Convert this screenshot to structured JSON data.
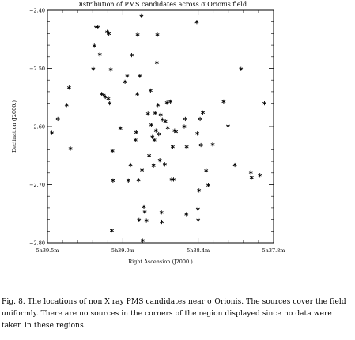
{
  "chart_data": {
    "type": "scatter",
    "title": "Distribution of PMS candidates across σ Orionis field",
    "xlabel": "Right Ascension (J2000.)",
    "ylabel": "Declination (J2000.)",
    "x_unit": "seconds of 5h RA",
    "x_axis_reversed": true,
    "xlim": [
      2359.5,
      2277.0
    ],
    "ylim": [
      -2.8,
      -2.4
    ],
    "x_ticks": [
      2359.5,
      2332.0,
      2304.5,
      2277.0
    ],
    "x_tick_labels": [
      "5h39.5m",
      "5h39.0m",
      "5h38.4m",
      "5h37.8m"
    ],
    "y_ticks": [
      -2.4,
      -2.5,
      -2.6,
      -2.7,
      -2.8
    ],
    "y_tick_labels": [
      "−2.40",
      "−2.50",
      "−2.60",
      "−2.70",
      "−2.80"
    ],
    "grid": false,
    "legend": "none",
    "marker": "asterisk",
    "points": [
      {
        "x": 2357.9,
        "y": -2.611
      },
      {
        "x": 2355.7,
        "y": -2.587
      },
      {
        "x": 2352.5,
        "y": -2.563
      },
      {
        "x": 2351.6,
        "y": -2.533
      },
      {
        "x": 2351.1,
        "y": -2.638
      },
      {
        "x": 2342.8,
        "y": -2.501
      },
      {
        "x": 2342.4,
        "y": -2.461
      },
      {
        "x": 2341.8,
        "y": -2.429
      },
      {
        "x": 2341.1,
        "y": -2.429
      },
      {
        "x": 2340.4,
        "y": -2.476
      },
      {
        "x": 2339.7,
        "y": -2.544
      },
      {
        "x": 2339.0,
        "y": -2.546
      },
      {
        "x": 2338.4,
        "y": -2.549
      },
      {
        "x": 2337.7,
        "y": -2.437
      },
      {
        "x": 2337.3,
        "y": -2.552
      },
      {
        "x": 2337.1,
        "y": -2.44
      },
      {
        "x": 2336.8,
        "y": -2.56
      },
      {
        "x": 2336.4,
        "y": -2.502
      },
      {
        "x": 2335.8,
        "y": -2.642
      },
      {
        "x": 2335.6,
        "y": -2.693
      },
      {
        "x": 2336.0,
        "y": -2.779
      },
      {
        "x": 2332.9,
        "y": -2.603
      },
      {
        "x": 2331.2,
        "y": -2.523
      },
      {
        "x": 2330.4,
        "y": -2.513
      },
      {
        "x": 2330.0,
        "y": -2.693
      },
      {
        "x": 2329.2,
        "y": -2.666
      },
      {
        "x": 2328.8,
        "y": -2.477
      },
      {
        "x": 2327.4,
        "y": -2.623
      },
      {
        "x": 2327.1,
        "y": -2.61
      },
      {
        "x": 2326.7,
        "y": -2.544
      },
      {
        "x": 2326.3,
        "y": -2.692
      },
      {
        "x": 2326.1,
        "y": -2.761
      },
      {
        "x": 2326.6,
        "y": -2.442
      },
      {
        "x": 2325.8,
        "y": -2.513
      },
      {
        "x": 2325.2,
        "y": -2.41
      },
      {
        "x": 2325.0,
        "y": -2.675
      },
      {
        "x": 2324.8,
        "y": -2.796
      },
      {
        "x": 2324.3,
        "y": -2.738
      },
      {
        "x": 2324.0,
        "y": -2.747
      },
      {
        "x": 2323.4,
        "y": -2.762
      },
      {
        "x": 2322.8,
        "y": -2.578
      },
      {
        "x": 2322.4,
        "y": -2.65
      },
      {
        "x": 2321.9,
        "y": -2.538
      },
      {
        "x": 2321.6,
        "y": -2.597
      },
      {
        "x": 2321.2,
        "y": -2.618
      },
      {
        "x": 2320.8,
        "y": -2.667
      },
      {
        "x": 2320.5,
        "y": -2.623
      },
      {
        "x": 2320.2,
        "y": -2.577
      },
      {
        "x": 2319.9,
        "y": -2.607
      },
      {
        "x": 2319.6,
        "y": -2.49
      },
      {
        "x": 2319.4,
        "y": -2.442
      },
      {
        "x": 2319.2,
        "y": -2.563
      },
      {
        "x": 2318.9,
        "y": -2.613
      },
      {
        "x": 2318.5,
        "y": -2.658
      },
      {
        "x": 2318.2,
        "y": -2.58
      },
      {
        "x": 2317.9,
        "y": -2.748
      },
      {
        "x": 2317.8,
        "y": -2.764
      },
      {
        "x": 2317.6,
        "y": -2.588
      },
      {
        "x": 2316.7,
        "y": -2.665
      },
      {
        "x": 2316.5,
        "y": -2.591
      },
      {
        "x": 2315.9,
        "y": -2.559
      },
      {
        "x": 2315.6,
        "y": -2.602
      },
      {
        "x": 2314.6,
        "y": -2.557
      },
      {
        "x": 2314.2,
        "y": -2.691
      },
      {
        "x": 2313.8,
        "y": -2.635
      },
      {
        "x": 2313.5,
        "y": -2.691
      },
      {
        "x": 2313.1,
        "y": -2.607
      },
      {
        "x": 2312.6,
        "y": -2.609
      },
      {
        "x": 2309.6,
        "y": -2.6
      },
      {
        "x": 2309.2,
        "y": -2.587
      },
      {
        "x": 2308.8,
        "y": -2.751
      },
      {
        "x": 2308.7,
        "y": -2.635
      },
      {
        "x": 2305.0,
        "y": -2.42
      },
      {
        "x": 2304.8,
        "y": -2.612
      },
      {
        "x": 2304.6,
        "y": -2.742
      },
      {
        "x": 2304.5,
        "y": -2.761
      },
      {
        "x": 2304.2,
        "y": -2.71
      },
      {
        "x": 2303.8,
        "y": -2.587
      },
      {
        "x": 2303.5,
        "y": -2.632
      },
      {
        "x": 2302.8,
        "y": -2.576
      },
      {
        "x": 2301.6,
        "y": -2.676
      },
      {
        "x": 2300.8,
        "y": -2.701
      },
      {
        "x": 2299.2,
        "y": -2.631
      },
      {
        "x": 2295.2,
        "y": -2.557
      },
      {
        "x": 2293.6,
        "y": -2.599
      },
      {
        "x": 2291.1,
        "y": -2.666
      },
      {
        "x": 2288.9,
        "y": -2.501
      },
      {
        "x": 2285.3,
        "y": -2.679
      },
      {
        "x": 2285.0,
        "y": -2.688
      },
      {
        "x": 2282.0,
        "y": -2.684
      },
      {
        "x": 2280.3,
        "y": -2.56
      }
    ]
  },
  "caption": {
    "text": "Fig. 8.    The locations of non  X  ray PMS candidates near σ Orionis. The sources cover the field uniformly. There are no sources in the corners of the region displayed since no data were taken in these regions."
  }
}
